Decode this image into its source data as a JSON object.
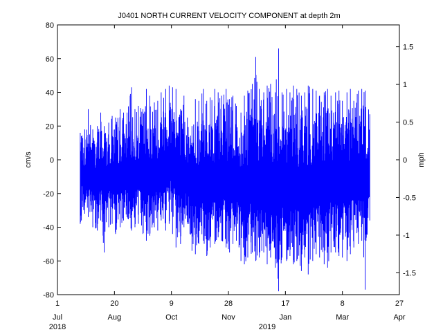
{
  "chart_data": {
    "type": "line",
    "title": "J0401 NORTH CURRENT VELOCITY COMPONENT at depth 2m",
    "ylabel": "cm/s",
    "y2label": "mph",
    "ylim": [
      -80,
      80
    ],
    "y2lim": [
      -1.79,
      1.79
    ],
    "xlim": [
      "2018-07-01",
      "2019-04-27"
    ],
    "grid": false,
    "legend": "none",
    "yticks": [
      "-80",
      "-60",
      "-40",
      "-20",
      "0",
      "20",
      "40",
      "60",
      "80"
    ],
    "y2ticks": [
      "-1.5",
      "-1",
      "-0.5",
      "0",
      "0.5",
      "1",
      "1.5"
    ],
    "xticks": [
      {
        "date": "2018-07-01",
        "label": "1",
        "month": "Jul"
      },
      {
        "date": "2018-08-20",
        "label": "20",
        "month": "Aug"
      },
      {
        "date": "2018-10-09",
        "label": "9",
        "month": "Oct"
      },
      {
        "date": "2018-11-28",
        "label": "28",
        "month": "Nov"
      },
      {
        "date": "2019-01-17",
        "label": "17",
        "month": "Jan"
      },
      {
        "date": "2019-03-08",
        "label": "8",
        "month": "Mar"
      },
      {
        "date": "2019-04-27",
        "label": "27",
        "month": "Apr"
      }
    ],
    "year_labels": [
      {
        "date": "2018-07-01",
        "label": "2018"
      },
      {
        "date": "2019-01-01",
        "label": "2019"
      }
    ],
    "series": [
      {
        "color": "#0000ff",
        "x": [
          "2018-07-21",
          "2018-07-22",
          "2018-07-25",
          "2018-07-28",
          "2018-08-01",
          "2018-08-05",
          "2018-08-08",
          "2018-08-11",
          "2018-08-15",
          "2018-08-18",
          "2018-08-21",
          "2018-08-25",
          "2018-08-28",
          "2018-08-31",
          "2018-09-04",
          "2018-09-07",
          "2018-09-10",
          "2018-09-14",
          "2018-09-17",
          "2018-09-20",
          "2018-09-24",
          "2018-09-27",
          "2018-09-30",
          "2018-10-04",
          "2018-10-07",
          "2018-10-10",
          "2018-10-13",
          "2018-10-17",
          "2018-10-20",
          "2018-10-23",
          "2018-10-27",
          "2018-10-30",
          "2018-11-02",
          "2018-11-06",
          "2018-11-09",
          "2018-11-12",
          "2018-11-16",
          "2018-11-19",
          "2018-11-22",
          "2018-11-26",
          "2018-11-29",
          "2018-12-02",
          "2018-12-05",
          "2018-12-09",
          "2018-12-12",
          "2018-12-15",
          "2018-12-19",
          "2018-12-22",
          "2018-12-25",
          "2018-12-29",
          "2019-01-01",
          "2019-01-04",
          "2019-01-08",
          "2019-01-11",
          "2019-01-14",
          "2019-01-18",
          "2019-01-21",
          "2019-01-24",
          "2019-01-27",
          "2019-01-31",
          "2019-02-03",
          "2019-02-06",
          "2019-02-10",
          "2019-02-13",
          "2019-02-16",
          "2019-02-20",
          "2019-02-23",
          "2019-02-26",
          "2019-03-02",
          "2019-03-05",
          "2019-03-08",
          "2019-03-12",
          "2019-03-15",
          "2019-03-18",
          "2019-03-22",
          "2019-03-25",
          "2019-03-28",
          "2019-04-01"
        ],
        "ymin": [
          -38,
          -36,
          -32,
          -34,
          -40,
          -42,
          -36,
          -55,
          -40,
          -38,
          -44,
          -40,
          -36,
          -34,
          -42,
          -40,
          -38,
          -44,
          -48,
          -45,
          -40,
          -42,
          -36,
          -42,
          -38,
          -44,
          -52,
          -50,
          -40,
          -38,
          -54,
          -56,
          -50,
          -48,
          -57,
          -52,
          -50,
          -46,
          -48,
          -52,
          -55,
          -50,
          -48,
          -60,
          -62,
          -58,
          -55,
          -60,
          -58,
          -55,
          -62,
          -58,
          -64,
          -78,
          -58,
          -60,
          -57,
          -62,
          -60,
          -66,
          -58,
          -68,
          -60,
          -56,
          -58,
          -62,
          -64,
          -55,
          -55,
          -57,
          -58,
          -60,
          -56,
          -52,
          -50,
          -48,
          -77,
          -36
        ],
        "ymax": [
          16,
          14,
          18,
          30,
          18,
          20,
          28,
          20,
          22,
          26,
          25,
          30,
          28,
          28,
          43,
          30,
          32,
          30,
          42,
          38,
          34,
          35,
          40,
          42,
          44,
          43,
          42,
          30,
          38,
          25,
          20,
          36,
          35,
          42,
          35,
          37,
          42,
          40,
          38,
          42,
          36,
          38,
          32,
          28,
          38,
          41,
          45,
          61,
          42,
          40,
          44,
          45,
          40,
          66,
          40,
          42,
          40,
          44,
          42,
          38,
          40,
          44,
          42,
          41,
          38,
          40,
          42,
          38,
          40,
          41,
          35,
          40,
          42,
          35,
          41,
          42,
          41,
          27
        ],
        "ymean": [
          -10,
          -8,
          -12,
          -10,
          -12,
          -14,
          -10,
          -12,
          -12,
          -10,
          -14,
          -12,
          -10,
          -12,
          -14,
          -12,
          -10,
          -14,
          -14,
          -12,
          -10,
          -12,
          -8,
          -6,
          -4,
          -2,
          -6,
          -14,
          -12,
          -10,
          -16,
          -18,
          -16,
          -14,
          -18,
          -16,
          -16,
          -14,
          -12,
          -14,
          -16,
          -14,
          -12,
          -18,
          -20,
          -18,
          -14,
          -16,
          -18,
          -16,
          -20,
          -16,
          -20,
          -22,
          -16,
          -18,
          -16,
          -20,
          -18,
          -22,
          -16,
          -22,
          -18,
          -14,
          -16,
          -18,
          -20,
          -14,
          -14,
          -16,
          -14,
          -16,
          -14,
          -12,
          -12,
          -12,
          -14,
          -12
        ]
      }
    ]
  }
}
